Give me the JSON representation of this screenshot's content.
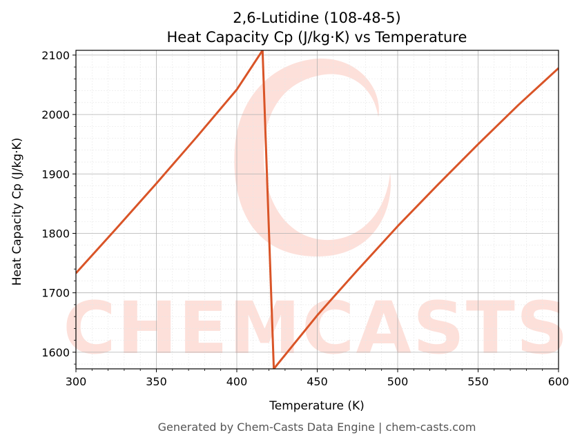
{
  "chart_data": {
    "type": "line",
    "title": "2,6-Lutidine (108-48-5)",
    "subtitle": "Heat Capacity Cp (J/kg·K) vs Temperature",
    "xlabel": "Temperature (K)",
    "ylabel": "Heat Capacity Cp (J/kg·K)",
    "xlim": [
      300,
      600
    ],
    "ylim": [
      1572,
      2108
    ],
    "xticks": [
      300,
      350,
      400,
      450,
      500,
      550,
      600
    ],
    "yticks": [
      1600,
      1700,
      1800,
      1900,
      2000,
      2100
    ],
    "grid": true,
    "series": [
      {
        "color": "#d95427",
        "x": [
          300,
          325,
          350,
          375,
          400,
          416,
          423,
          450,
          475,
          500,
          525,
          550,
          575,
          600
        ],
        "y": [
          1733,
          1808,
          1884,
          1962,
          2042,
          2108,
          1572,
          1662,
          1738,
          1812,
          1882,
          1950,
          2016,
          2078
        ]
      }
    ]
  },
  "watermark": {
    "text": "CHEMCASTS",
    "color": "#fde0da"
  },
  "footer": "Generated by Chem-Casts Data Engine | chem-casts.com"
}
